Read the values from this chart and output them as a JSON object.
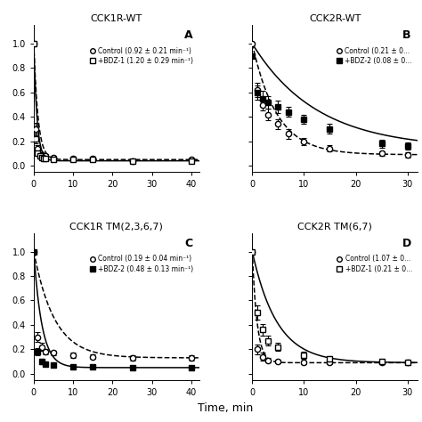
{
  "panels": [
    {
      "title": "CCK1R-WT",
      "label": "A",
      "control": {
        "x": [
          0,
          0.5,
          1,
          1.5,
          2,
          2.5,
          3,
          5,
          10,
          15,
          25,
          40
        ],
        "y": [
          1.0,
          0.3,
          0.14,
          0.1,
          0.09,
          0.08,
          0.08,
          0.07,
          0.06,
          0.06,
          0.04,
          0.05
        ],
        "yerr": [
          0.0,
          0.05,
          0.03,
          0.02,
          0.015,
          0.015,
          0.015,
          0.01,
          0.01,
          0.015,
          0.01,
          0.01
        ],
        "rate": 0.92,
        "plateau": 0.05,
        "linestyle": "--",
        "marker": "o",
        "filled": false,
        "legend_label": "Control (0.92 ± 0.21 min⁻¹)"
      },
      "treated": {
        "x": [
          0,
          0.5,
          1,
          1.5,
          2,
          2.5,
          3,
          5,
          10,
          15,
          25,
          40
        ],
        "y": [
          1.0,
          0.22,
          0.1,
          0.08,
          0.07,
          0.06,
          0.06,
          0.05,
          0.05,
          0.05,
          0.04,
          0.04
        ],
        "yerr": [
          0.0,
          0.04,
          0.02,
          0.02,
          0.015,
          0.01,
          0.01,
          0.01,
          0.01,
          0.01,
          0.01,
          0.01
        ],
        "rate": 1.2,
        "plateau": 0.04,
        "linestyle": "-",
        "marker": "s",
        "filled": false,
        "legend_label": "+BDZ-1 (1.20 ± 0.29 min⁻¹)"
      },
      "xlim": [
        0,
        42
      ],
      "ylim": [
        -0.05,
        1.15
      ],
      "xticks": [
        0,
        10,
        20,
        30,
        40
      ],
      "fit_x_max": 42
    },
    {
      "title": "CCK2R-WT",
      "label": "B",
      "control": {
        "x": [
          0,
          1,
          2,
          3,
          5,
          7,
          10,
          15,
          25,
          30
        ],
        "y": [
          1.0,
          0.62,
          0.5,
          0.42,
          0.34,
          0.26,
          0.2,
          0.14,
          0.1,
          0.09
        ],
        "yerr": [
          0.0,
          0.06,
          0.05,
          0.05,
          0.04,
          0.04,
          0.03,
          0.025,
          0.02,
          0.02
        ],
        "rate": 0.21,
        "plateau": 0.09,
        "linestyle": "--",
        "marker": "o",
        "filled": false,
        "legend_label": "Control (0.21 ± 0..."
      },
      "treated": {
        "x": [
          0,
          1,
          2,
          3,
          5,
          7,
          10,
          15,
          25,
          30
        ],
        "y": [
          0.9,
          0.6,
          0.55,
          0.52,
          0.48,
          0.44,
          0.38,
          0.3,
          0.18,
          0.16
        ],
        "yerr": [
          0.0,
          0.06,
          0.06,
          0.05,
          0.05,
          0.04,
          0.04,
          0.04,
          0.03,
          0.03
        ],
        "rate": 0.08,
        "plateau": 0.14,
        "linestyle": "-",
        "marker": "s",
        "filled": true,
        "legend_label": "+BDZ-2 (0.08 ± 0..."
      },
      "xlim": [
        0,
        32
      ],
      "ylim": [
        -0.05,
        1.15
      ],
      "xticks": [
        0,
        10,
        20,
        30
      ],
      "fit_x_max": 32
    },
    {
      "title": "CCK1R TM(2,3,6,7)",
      "label": "C",
      "control": {
        "x": [
          0,
          1,
          2,
          3,
          5,
          10,
          15,
          25,
          40
        ],
        "y": [
          1.0,
          0.3,
          0.22,
          0.18,
          0.17,
          0.15,
          0.14,
          0.13,
          0.13
        ],
        "yerr": [
          0.0,
          0.04,
          0.03,
          0.025,
          0.02,
          0.02,
          0.02,
          0.02,
          0.02
        ],
        "rate": 0.19,
        "plateau": 0.13,
        "linestyle": "--",
        "marker": "o",
        "filled": false,
        "legend_label": "Control (0.19 ± 0.04 min⁻¹)"
      },
      "treated": {
        "x": [
          0,
          1,
          2,
          3,
          5,
          10,
          15,
          25,
          40
        ],
        "y": [
          1.0,
          0.18,
          0.1,
          0.08,
          0.07,
          0.06,
          0.06,
          0.05,
          0.05
        ],
        "yerr": [
          0.0,
          0.03,
          0.02,
          0.015,
          0.01,
          0.01,
          0.01,
          0.01,
          0.01
        ],
        "rate": 0.48,
        "plateau": 0.05,
        "linestyle": "-",
        "marker": "s",
        "filled": true,
        "legend_label": "+BDZ-2 (0.48 ± 0.13 min⁻¹)"
      },
      "xlim": [
        0,
        42
      ],
      "ylim": [
        -0.05,
        1.15
      ],
      "xticks": [
        0,
        10,
        20,
        30,
        40
      ],
      "fit_x_max": 42
    },
    {
      "title": "CCK2R TM(6,7)",
      "label": "D",
      "control": {
        "x": [
          0,
          1,
          2,
          3,
          5,
          10,
          15,
          25,
          30
        ],
        "y": [
          1.0,
          0.2,
          0.14,
          0.11,
          0.1,
          0.09,
          0.09,
          0.09,
          0.09
        ],
        "yerr": [
          0.0,
          0.04,
          0.03,
          0.02,
          0.015,
          0.015,
          0.015,
          0.015,
          0.015
        ],
        "rate": 1.07,
        "plateau": 0.09,
        "linestyle": "--",
        "marker": "o",
        "filled": false,
        "legend_label": "Control (1.07 ± 0..."
      },
      "treated": {
        "x": [
          0,
          1,
          2,
          3,
          5,
          10,
          15,
          25,
          30
        ],
        "y": [
          1.0,
          0.5,
          0.36,
          0.27,
          0.22,
          0.15,
          0.12,
          0.1,
          0.09
        ],
        "yerr": [
          0.0,
          0.06,
          0.05,
          0.04,
          0.035,
          0.03,
          0.025,
          0.02,
          0.02
        ],
        "rate": 0.21,
        "plateau": 0.09,
        "linestyle": "-",
        "marker": "s",
        "filled": false,
        "legend_label": "+BDZ-1 (0.21 ± 0..."
      },
      "xlim": [
        0,
        32
      ],
      "ylim": [
        -0.05,
        1.15
      ],
      "xticks": [
        0,
        10,
        20,
        30
      ],
      "fit_x_max": 32
    }
  ],
  "xlabel": "Time, min",
  "background_color": "#ffffff"
}
